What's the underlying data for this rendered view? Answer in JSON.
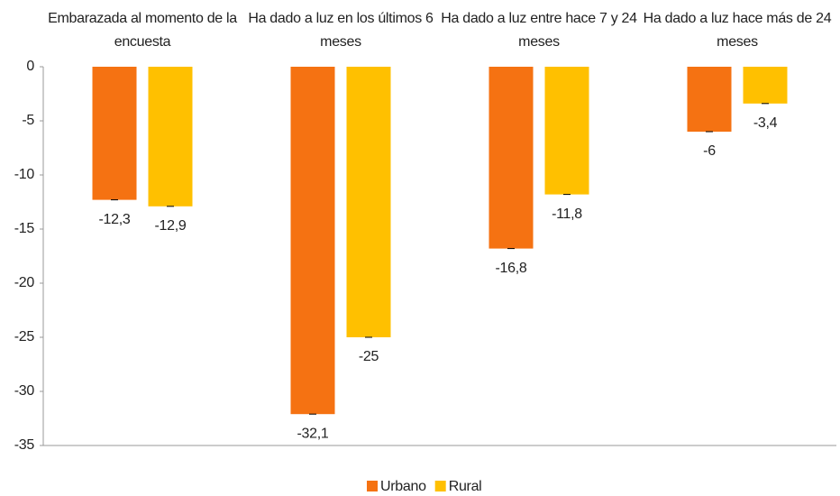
{
  "chart_data": {
    "type": "bar",
    "categories": [
      "Embarazada al momento de la encuesta",
      "Ha dado a luz en los últimos 6 meses",
      "Ha dado a luz entre hace 7 y 24 meses",
      "Ha dado a luz hace más de 24 meses"
    ],
    "series": [
      {
        "name": "Urbano",
        "color": "#f57212",
        "values": [
          -12.3,
          -32.1,
          -16.8,
          -6
        ],
        "value_labels": [
          "-12,3",
          "-32,1",
          "-16,8",
          "-6"
        ]
      },
      {
        "name": "Rural",
        "color": "#ffc000",
        "values": [
          -12.9,
          -25,
          -11.8,
          -3.4
        ],
        "value_labels": [
          "-12,9",
          "-25",
          "-11,8",
          "-3,4"
        ]
      }
    ],
    "ylim": [
      -35,
      0
    ],
    "yticks": [
      0,
      -5,
      -10,
      -15,
      -20,
      -25,
      -30,
      -35
    ],
    "legend": "bottom"
  }
}
